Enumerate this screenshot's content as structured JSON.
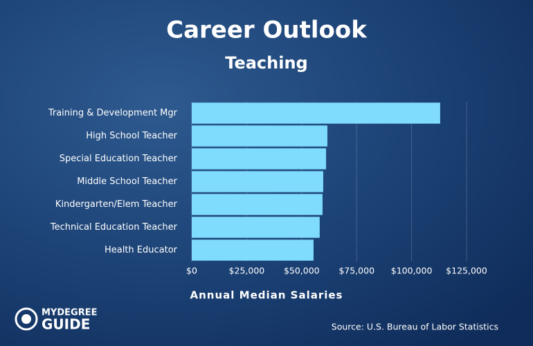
{
  "chart_data": {
    "type": "bar",
    "orientation": "horizontal",
    "title": "Career Outlook",
    "subtitle": "Teaching",
    "xlabel": "Annual Median Salaries",
    "source": "Source: U.S. Bureau of Labor Statistics",
    "categories": [
      "Training & Development Mgr",
      "High School Teacher",
      "Special Education Teacher",
      "Middle School Teacher",
      "Kindergarten/Elem Teacher",
      "Technical Education Teacher",
      "Health Educator"
    ],
    "values": [
      113000,
      61700,
      61100,
      59800,
      59500,
      58200,
      55400
    ],
    "color": "#7fdcfd",
    "xlim": [
      0,
      125000
    ],
    "xticks": [
      {
        "value": 0,
        "label": "$0"
      },
      {
        "value": 25000,
        "label": "$25,000"
      },
      {
        "value": 50000,
        "label": "$50,000"
      },
      {
        "value": 75000,
        "label": "$75,000"
      },
      {
        "value": 100000,
        "label": "$100,000"
      },
      {
        "value": 125000,
        "label": "$125,000"
      }
    ],
    "grid": true
  },
  "logo": {
    "line1": "MYDEGREE",
    "line2": "GUIDE"
  }
}
